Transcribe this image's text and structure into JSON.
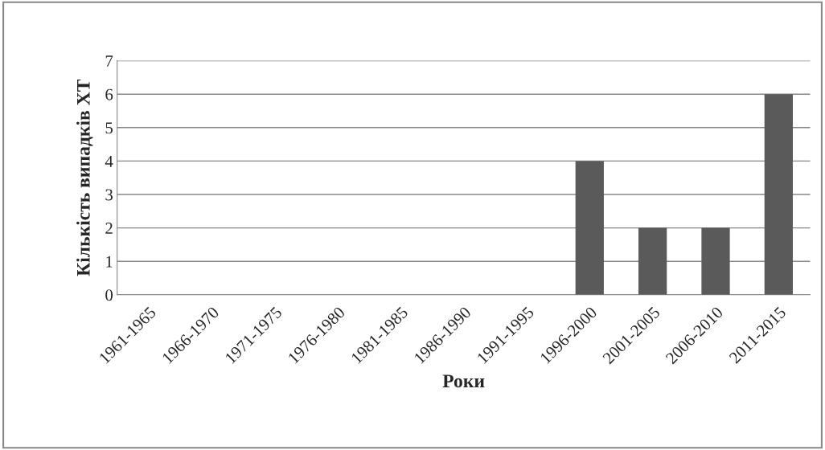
{
  "chart_data": {
    "type": "bar",
    "xlabel": "Роки",
    "ylabel": "Кількість випадків ХТ",
    "categories": [
      "1961-1965",
      "1966-1970",
      "1971-1975",
      "1976-1980",
      "1981-1985",
      "1986-1990",
      "1991-1995",
      "1996-2000",
      "2001-2005",
      "2006-2010",
      "2011-2015"
    ],
    "values": [
      0,
      0,
      0,
      0,
      0,
      0,
      0,
      4,
      2,
      2,
      6
    ],
    "color": "#5a5a5a",
    "ylim": [
      0,
      7
    ],
    "yticks": [
      0,
      1,
      2,
      3,
      4,
      5,
      6,
      7
    ],
    "grid": "y"
  }
}
